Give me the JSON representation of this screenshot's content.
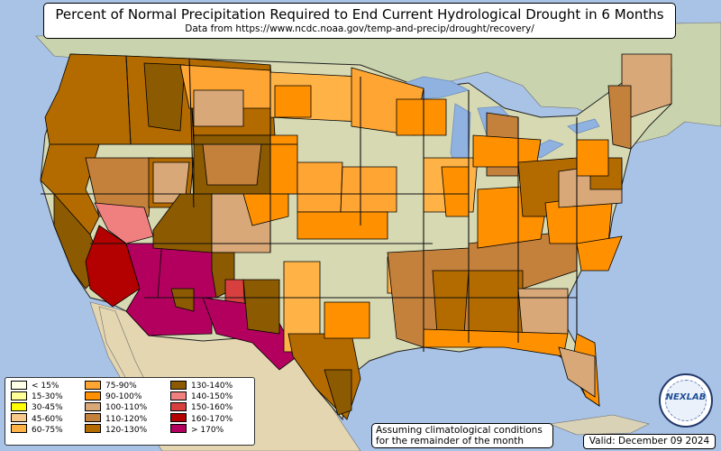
{
  "header": {
    "title": "Percent of Normal Precipitation Required to End Current Hydrological Drought in 6 Months",
    "subtitle": "Data from https://www.ncdc.noaa.gov/temp-and-precip/drought/recovery/"
  },
  "legend": {
    "items": [
      {
        "label": "< 15%",
        "color": "#ffffe8"
      },
      {
        "label": "15-30%",
        "color": "#ffff99"
      },
      {
        "label": "30-45%",
        "color": "#ffff00"
      },
      {
        "label": "45-60%",
        "color": "#f8c98a"
      },
      {
        "label": "60-75%",
        "color": "#ffb347"
      },
      {
        "label": "75-90%",
        "color": "#ffa533"
      },
      {
        "label": "90-100%",
        "color": "#ff9100"
      },
      {
        "label": "100-110%",
        "color": "#d8a878"
      },
      {
        "label": "110-120%",
        "color": "#c4813c"
      },
      {
        "label": "120-130%",
        "color": "#b36b00"
      },
      {
        "label": "130-140%",
        "color": "#8c5a00"
      },
      {
        "label": "140-150%",
        "color": "#f08080"
      },
      {
        "label": "150-160%",
        "color": "#d84040"
      },
      {
        "label": "160-170%",
        "color": "#b30000"
      },
      {
        "label": "> 170%",
        "color": "#b3005f"
      }
    ]
  },
  "note": {
    "line1": "Assuming climatological conditions",
    "line2": "for the remainder of the month"
  },
  "valid_label": "Valid: December 09 2024",
  "logo": {
    "text": "NEXLAB"
  },
  "colors": {
    "ocean": "#a9c3e6",
    "land": "#d9d2b6",
    "forest": "#bccfa0",
    "mexico": "#e4d6b0"
  }
}
